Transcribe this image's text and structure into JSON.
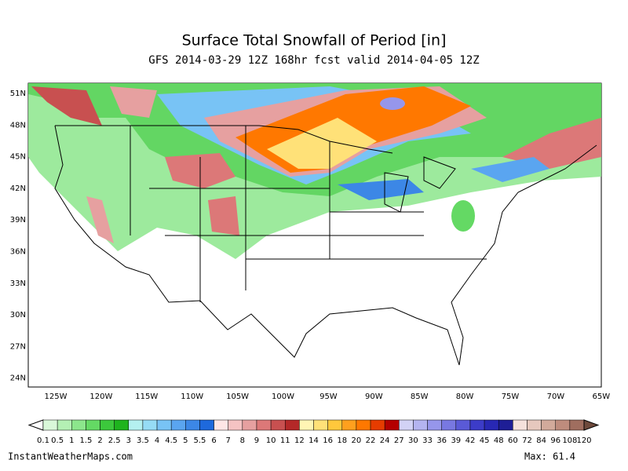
{
  "header": {
    "title": "Surface Total Snowfall of Period [in]",
    "subtitle": "GFS 2014-03-29 12Z 168hr fcst valid 2014-04-05 12Z"
  },
  "map": {
    "lat_labels": [
      "51N",
      "48N",
      "45N",
      "42N",
      "39N",
      "36N",
      "33N",
      "30N",
      "27N",
      "24N"
    ],
    "lon_labels": [
      "125W",
      "120W",
      "115W",
      "110W",
      "105W",
      "100W",
      "95W",
      "90W",
      "85W",
      "80W",
      "75W",
      "70W",
      "65W"
    ]
  },
  "legend": {
    "labels": [
      "0.1",
      "0.5",
      "1",
      "1.5",
      "2",
      "2.5",
      "3",
      "3.5",
      "4",
      "4.5",
      "5",
      "5.5",
      "6",
      "7",
      "8",
      "9",
      "10",
      "11",
      "12",
      "14",
      "16",
      "18",
      "20",
      "22",
      "24",
      "27",
      "30",
      "33",
      "36",
      "39",
      "42",
      "45",
      "48",
      "60",
      "72",
      "84",
      "96",
      "108",
      "120"
    ],
    "colors": [
      "#d9f8d9",
      "#b4f0b4",
      "#8ce68c",
      "#64d964",
      "#3cc83c",
      "#1eb41e",
      "#b4f0f0",
      "#96dcf5",
      "#78c3f5",
      "#5aa5f0",
      "#3c87e6",
      "#1e69dc",
      "#ffe6e6",
      "#f5c3c3",
      "#e6a0a0",
      "#dc7878",
      "#c85050",
      "#b42828",
      "#fff5b4",
      "#ffe178",
      "#ffc83c",
      "#ffa01e",
      "#ff7800",
      "#e63c00",
      "#b40000",
      "#d2d2f5",
      "#b4b4f0",
      "#9696eb",
      "#7878e1",
      "#5a5ad7",
      "#3c3cc8",
      "#2828b4",
      "#1e1e96",
      "#f5e1dc",
      "#e6c8be",
      "#d2aa9b",
      "#be8c7d",
      "#a06e5f"
    ]
  },
  "footer": {
    "source": "InstantWeatherMaps.com",
    "max": "Max:  61.4"
  }
}
